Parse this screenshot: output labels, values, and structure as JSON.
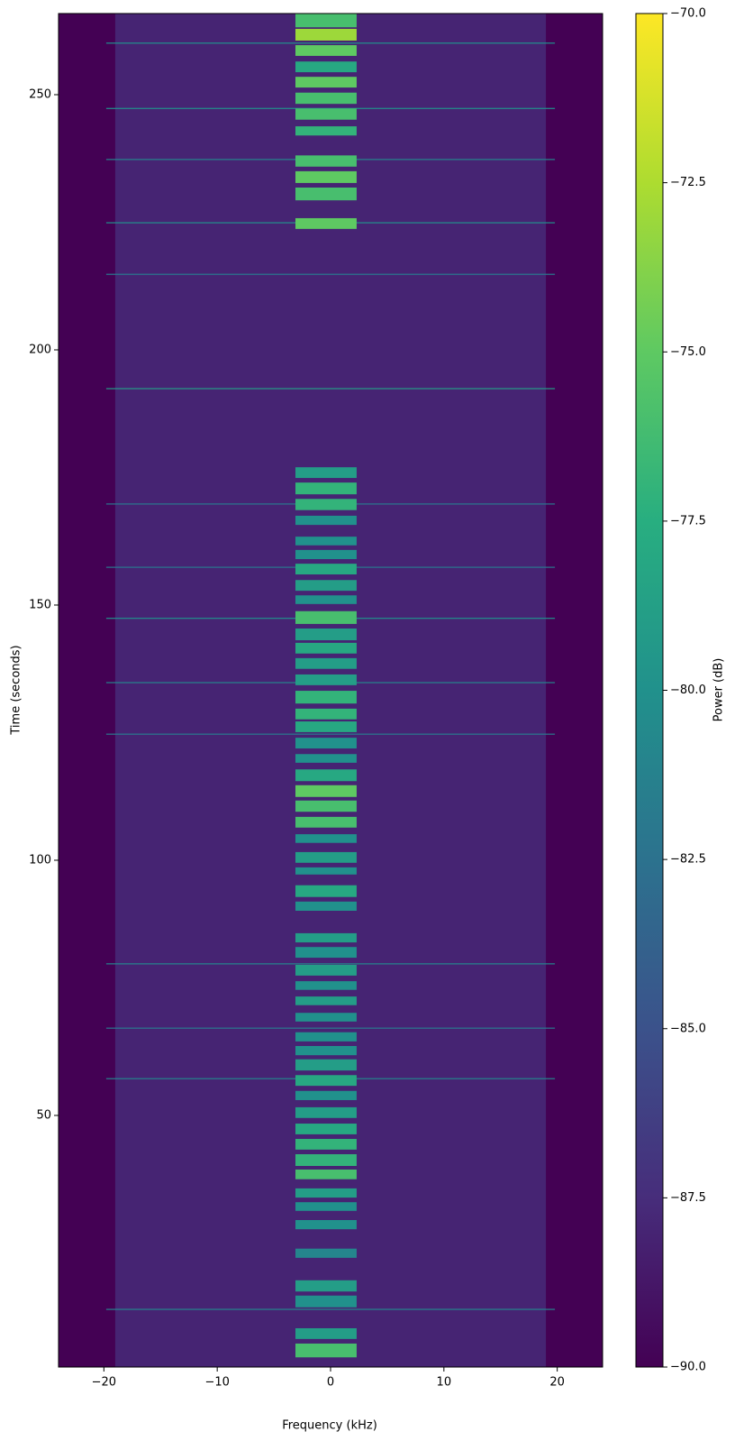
{
  "chart_data": {
    "type": "spectrogram",
    "xlabel": "Frequency (kHz)",
    "ylabel": "Time (seconds)",
    "colorbar_label": "Power (dB)",
    "colormap": "viridis",
    "xlim": [
      -24,
      24
    ],
    "xticks": [
      {
        "value": -20,
        "label": "−20"
      },
      {
        "value": -10,
        "label": "−10"
      },
      0,
      10,
      20
    ],
    "ylim": [
      0.7,
      265.9
    ],
    "yticks": [
      50,
      100,
      150,
      200,
      250
    ],
    "clim": [
      -90,
      -70
    ],
    "cticks": [
      {
        "value": -90,
        "label": "−90.0"
      },
      {
        "value": -87.5,
        "label": "−87.5"
      },
      {
        "value": -85,
        "label": "−85.0"
      },
      {
        "value": -82.5,
        "label": "−82.5"
      },
      {
        "value": -80,
        "label": "−80.0"
      },
      {
        "value": -77.5,
        "label": "−77.5"
      },
      {
        "value": -75,
        "label": "−75.0"
      },
      {
        "value": -72.5,
        "label": "−72.5"
      },
      {
        "value": -70,
        "label": "−70.0"
      }
    ],
    "noise_band": [
      -19,
      19
    ],
    "noise_power": -88,
    "signal_band": [
      -3.1,
      2.3
    ],
    "bursts": {
      "start": [
        263.2,
        260.6,
        257.6,
        254.4,
        251.4,
        248.2,
        245.1,
        242.0,
        235.9,
        232.7,
        229.3,
        223.7,
        174.9,
        171.7,
        168.6,
        165.7,
        161.7,
        159.0,
        156.0,
        152.8,
        150.2,
        146.3,
        143.1,
        140.5,
        137.5,
        134.3,
        130.7,
        127.6,
        125.1,
        121.9,
        119.1,
        115.5,
        112.4,
        109.5,
        106.4,
        103.4,
        99.5,
        97.2,
        92.8,
        90.1,
        83.9,
        80.9,
        77.4,
        74.6,
        71.6,
        68.4,
        64.5,
        61.8,
        58.8,
        55.8,
        53.0,
        49.5,
        46.3,
        43.3,
        40.1,
        37.5,
        33.9,
        31.3,
        27.7,
        22.1,
        15.5,
        12.4,
        6.2,
        2.6
      ],
      "end": [
        265.9,
        262.9,
        259.7,
        256.5,
        253.5,
        250.4,
        247.3,
        243.8,
        238.1,
        235.0,
        231.8,
        225.8,
        177.0,
        174.0,
        170.8,
        167.5,
        163.4,
        160.8,
        158.1,
        154.9,
        151.9,
        148.8,
        145.4,
        142.6,
        139.6,
        136.4,
        133.2,
        129.7,
        127.2,
        124.0,
        120.8,
        117.8,
        114.7,
        111.7,
        108.5,
        105.1,
        101.6,
        98.6,
        95.1,
        91.9,
        85.7,
        83.0,
        79.5,
        76.3,
        73.3,
        70.1,
        66.3,
        63.6,
        61.0,
        57.9,
        54.8,
        51.6,
        48.4,
        45.4,
        42.4,
        39.4,
        35.7,
        33.0,
        29.5,
        23.9,
        17.7,
        14.7,
        8.3,
        5.3
      ],
      "power": [
        -76,
        -73,
        -75,
        -78,
        -75,
        -76,
        -76,
        -77,
        -76,
        -75,
        -76,
        -75,
        -79,
        -77,
        -77,
        -80,
        -80,
        -80,
        -78,
        -79,
        -80,
        -76,
        -79,
        -78,
        -79,
        -79,
        -77,
        -77,
        -78,
        -80,
        -80,
        -78,
        -75,
        -76,
        -76,
        -80,
        -79,
        -80,
        -78,
        -80,
        -79,
        -80,
        -79,
        -80,
        -79,
        -80,
        -80,
        -80,
        -79,
        -78,
        -80,
        -79,
        -78,
        -77,
        -77,
        -76,
        -79,
        -80,
        -80,
        -81,
        -79,
        -80,
        -79,
        -76
      ]
    },
    "lines": {
      "time": [
        260.1,
        247.3,
        237.3,
        224.9,
        214.8,
        192.4,
        169.8,
        157.4,
        147.4,
        134.8,
        124.7,
        79.7,
        67.1,
        57.2,
        12.0
      ],
      "power": [
        -80,
        -80,
        -81,
        -80,
        -82,
        -79,
        -82,
        -82,
        -80,
        -81,
        -82,
        -81,
        -82,
        -81,
        -81
      ]
    }
  }
}
